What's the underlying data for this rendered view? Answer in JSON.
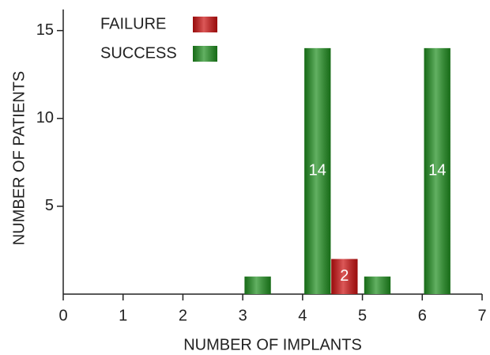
{
  "chart_data": {
    "type": "bar",
    "xlabel": "NUMBER OF IMPLANTS",
    "ylabel": "NUMBER OF PATIENTS",
    "xlim": [
      0,
      7
    ],
    "xticks": [
      0,
      1,
      2,
      3,
      4,
      5,
      6,
      7
    ],
    "ylim": [
      0,
      16.2
    ],
    "yticks": [
      5,
      10,
      15
    ],
    "series": [
      {
        "name": "FAILURE",
        "color": "#cc1010",
        "x": [
          4.7
        ],
        "values": [
          2
        ]
      },
      {
        "name": "SUCCESS",
        "color": "#1f8f1f",
        "x": [
          3.25,
          4.25,
          5.25,
          6.25
        ],
        "values": [
          1,
          14,
          1,
          14
        ]
      }
    ]
  }
}
